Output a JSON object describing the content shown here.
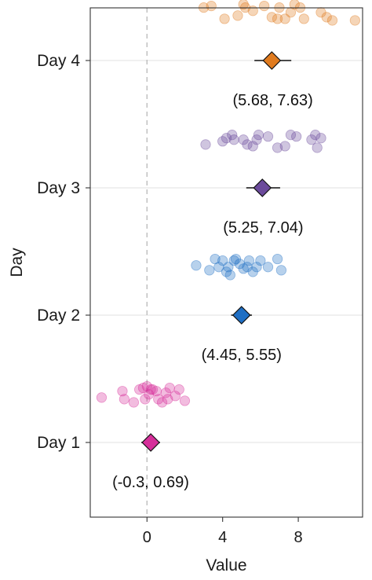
{
  "chart_data": {
    "type": "scatter",
    "title": "",
    "xlabel": "Value",
    "ylabel": "Day",
    "xlim": [
      -3.0,
      11.4
    ],
    "x_ticks": [
      0,
      4,
      8
    ],
    "x_tick_labels": [
      "0",
      "4",
      "8"
    ],
    "reference_line_x": 0,
    "categories": [
      "Day 1",
      "Day 2",
      "Day 3",
      "Day 4"
    ],
    "grid": "horizontal-major-only",
    "legend": "none",
    "series": [
      {
        "category": "Day 1",
        "color": "#D62F9A",
        "estimate": 0.2,
        "ci": [
          -0.3,
          0.69
        ],
        "ci_label": "(-0.3, 0.69)",
        "points": [
          {
            "x": -2.4,
            "y": 0.28
          },
          {
            "x": -1.3,
            "y": 0.32
          },
          {
            "x": -1.2,
            "y": 0.27
          },
          {
            "x": -0.7,
            "y": 0.25
          },
          {
            "x": -0.4,
            "y": 0.33
          },
          {
            "x": -0.2,
            "y": 0.34
          },
          {
            "x": -0.1,
            "y": 0.27
          },
          {
            "x": 0.0,
            "y": 0.35
          },
          {
            "x": 0.1,
            "y": 0.3
          },
          {
            "x": 0.2,
            "y": 0.33
          },
          {
            "x": 0.3,
            "y": 0.33
          },
          {
            "x": 0.5,
            "y": 0.32
          },
          {
            "x": 0.6,
            "y": 0.27
          },
          {
            "x": 0.8,
            "y": 0.25
          },
          {
            "x": 1.0,
            "y": 0.31
          },
          {
            "x": 1.1,
            "y": 0.27
          },
          {
            "x": 1.2,
            "y": 0.34
          },
          {
            "x": 1.5,
            "y": 0.29
          },
          {
            "x": 1.7,
            "y": 0.33
          },
          {
            "x": 2.0,
            "y": 0.26
          }
        ]
      },
      {
        "category": "Day 2",
        "color": "#1F6FC4",
        "estimate": 5.0,
        "ci": [
          4.45,
          5.55
        ],
        "ci_label": "(4.45, 5.55)",
        "points": [
          {
            "x": 2.6,
            "y": 0.31
          },
          {
            "x": 3.3,
            "y": 0.28
          },
          {
            "x": 3.6,
            "y": 0.35
          },
          {
            "x": 3.8,
            "y": 0.3
          },
          {
            "x": 4.0,
            "y": 0.34
          },
          {
            "x": 4.2,
            "y": 0.27
          },
          {
            "x": 4.3,
            "y": 0.3
          },
          {
            "x": 4.4,
            "y": 0.25
          },
          {
            "x": 4.6,
            "y": 0.34
          },
          {
            "x": 4.7,
            "y": 0.35
          },
          {
            "x": 4.9,
            "y": 0.32
          },
          {
            "x": 5.1,
            "y": 0.29
          },
          {
            "x": 5.3,
            "y": 0.3
          },
          {
            "x": 5.4,
            "y": 0.34
          },
          {
            "x": 5.6,
            "y": 0.27
          },
          {
            "x": 5.8,
            "y": 0.3
          },
          {
            "x": 6.0,
            "y": 0.34
          },
          {
            "x": 6.4,
            "y": 0.3
          },
          {
            "x": 6.9,
            "y": 0.35
          },
          {
            "x": 7.1,
            "y": 0.28
          }
        ]
      },
      {
        "category": "Day 3",
        "color": "#6B4A9B",
        "estimate": 6.1,
        "ci": [
          5.25,
          7.04
        ],
        "ci_label": "(5.25, 7.04)",
        "points": [
          {
            "x": 3.1,
            "y": 0.27
          },
          {
            "x": 4.0,
            "y": 0.29
          },
          {
            "x": 4.2,
            "y": 0.31
          },
          {
            "x": 4.5,
            "y": 0.33
          },
          {
            "x": 4.6,
            "y": 0.3
          },
          {
            "x": 5.1,
            "y": 0.3
          },
          {
            "x": 5.3,
            "y": 0.27
          },
          {
            "x": 5.6,
            "y": 0.26
          },
          {
            "x": 5.8,
            "y": 0.3
          },
          {
            "x": 5.9,
            "y": 0.33
          },
          {
            "x": 6.4,
            "y": 0.32
          },
          {
            "x": 6.9,
            "y": 0.25
          },
          {
            "x": 7.3,
            "y": 0.26
          },
          {
            "x": 7.6,
            "y": 0.33
          },
          {
            "x": 7.9,
            "y": 0.32
          },
          {
            "x": 8.7,
            "y": 0.3
          },
          {
            "x": 8.9,
            "y": 0.33
          },
          {
            "x": 9.0,
            "y": 0.25
          },
          {
            "x": 9.2,
            "y": 0.31
          }
        ]
      },
      {
        "category": "Day 4",
        "color": "#E07B1F",
        "estimate": 6.6,
        "ci": [
          5.68,
          7.63
        ],
        "ci_label": "(5.68, 7.63)",
        "points": [
          {
            "x": 3.0,
            "y": 0.33
          },
          {
            "x": 3.4,
            "y": 0.34
          },
          {
            "x": 4.1,
            "y": 0.26
          },
          {
            "x": 4.8,
            "y": 0.28
          },
          {
            "x": 5.1,
            "y": 0.35
          },
          {
            "x": 5.2,
            "y": 0.33
          },
          {
            "x": 5.6,
            "y": 0.31
          },
          {
            "x": 6.2,
            "y": 0.34
          },
          {
            "x": 6.6,
            "y": 0.27
          },
          {
            "x": 6.9,
            "y": 0.26
          },
          {
            "x": 7.0,
            "y": 0.33
          },
          {
            "x": 7.3,
            "y": 0.26
          },
          {
            "x": 7.6,
            "y": 0.3
          },
          {
            "x": 7.8,
            "y": 0.35
          },
          {
            "x": 8.1,
            "y": 0.33
          },
          {
            "x": 8.3,
            "y": 0.26
          },
          {
            "x": 9.2,
            "y": 0.3
          },
          {
            "x": 9.5,
            "y": 0.27
          },
          {
            "x": 9.8,
            "y": 0.25
          },
          {
            "x": 11.0,
            "y": 0.25
          }
        ]
      }
    ]
  }
}
